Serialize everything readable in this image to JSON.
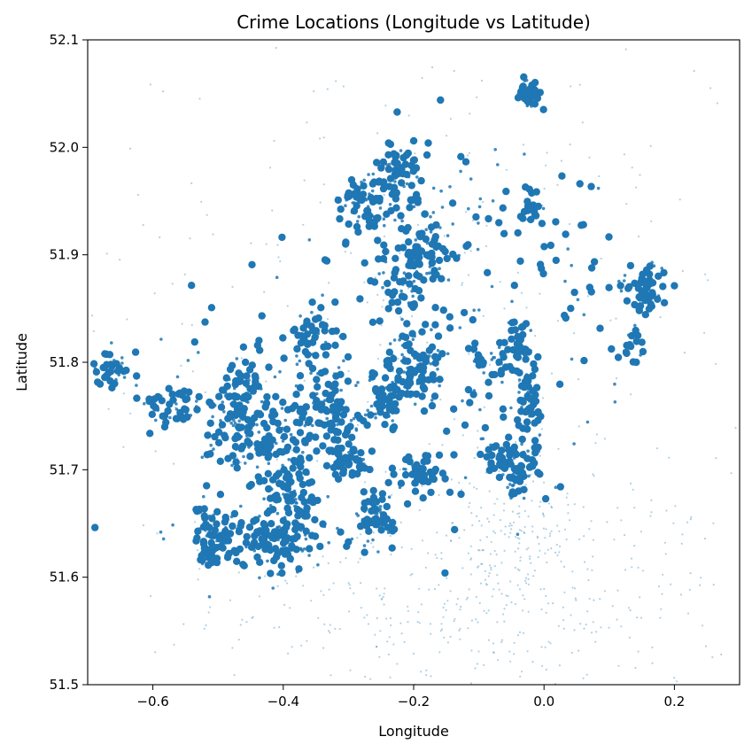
{
  "chart_data": {
    "type": "scatter",
    "title": "Crime Locations (Longitude vs Latitude)",
    "xlabel": "Longitude",
    "ylabel": "Latitude",
    "xlim": [
      -0.7,
      0.3
    ],
    "ylim": [
      51.5,
      52.1
    ],
    "xticks": [
      -0.6,
      -0.4,
      -0.2,
      0.0,
      0.2
    ],
    "xtick_labels": [
      "−0.6",
      "−0.4",
      "−0.2",
      "0.0",
      "0.2"
    ],
    "yticks": [
      51.5,
      51.6,
      51.7,
      51.8,
      51.9,
      52.0,
      52.1
    ],
    "ytick_labels": [
      "51.5",
      "51.6",
      "51.7",
      "51.8",
      "51.9",
      "52.0",
      "52.1"
    ],
    "grid": false,
    "marker_color": "#1f77b4",
    "series": [
      {
        "clusters": [
          {
            "lon": -0.02,
            "lat": 52.052,
            "count": 50,
            "spread_lon": 0.008,
            "spread_lat": 0.006
          },
          {
            "lon": -0.225,
            "lat": 51.975,
            "count": 80,
            "spread_lon": 0.022,
            "spread_lat": 0.014
          },
          {
            "lon": -0.275,
            "lat": 51.95,
            "count": 70,
            "spread_lon": 0.018,
            "spread_lat": 0.015
          },
          {
            "lon": -0.195,
            "lat": 51.905,
            "count": 110,
            "spread_lon": 0.028,
            "spread_lat": 0.028
          },
          {
            "lon": -0.02,
            "lat": 51.945,
            "count": 25,
            "spread_lon": 0.008,
            "spread_lat": 0.008
          },
          {
            "lon": 0.155,
            "lat": 51.868,
            "count": 70,
            "spread_lon": 0.018,
            "spread_lat": 0.012
          },
          {
            "lon": -0.36,
            "lat": 51.825,
            "count": 50,
            "spread_lon": 0.018,
            "spread_lat": 0.012
          },
          {
            "lon": -0.2,
            "lat": 51.795,
            "count": 90,
            "spread_lon": 0.022,
            "spread_lat": 0.016
          },
          {
            "lon": -0.035,
            "lat": 51.812,
            "count": 35,
            "spread_lon": 0.012,
            "spread_lat": 0.01
          },
          {
            "lon": -0.085,
            "lat": 51.8,
            "count": 30,
            "spread_lon": 0.015,
            "spread_lat": 0.008
          },
          {
            "lon": -0.665,
            "lat": 51.795,
            "count": 35,
            "spread_lon": 0.015,
            "spread_lat": 0.008
          },
          {
            "lon": -0.575,
            "lat": 51.76,
            "count": 45,
            "spread_lon": 0.025,
            "spread_lat": 0.01
          },
          {
            "lon": -0.46,
            "lat": 51.755,
            "count": 140,
            "spread_lon": 0.03,
            "spread_lat": 0.025
          },
          {
            "lon": -0.33,
            "lat": 51.755,
            "count": 110,
            "spread_lon": 0.028,
            "spread_lat": 0.022
          },
          {
            "lon": -0.24,
            "lat": 51.765,
            "count": 60,
            "spread_lon": 0.018,
            "spread_lat": 0.012
          },
          {
            "lon": -0.02,
            "lat": 51.76,
            "count": 45,
            "spread_lon": 0.01,
            "spread_lat": 0.02
          },
          {
            "lon": -0.05,
            "lat": 51.71,
            "count": 70,
            "spread_lon": 0.022,
            "spread_lat": 0.012
          },
          {
            "lon": -0.04,
            "lat": 51.69,
            "count": 35,
            "spread_lon": 0.015,
            "spread_lat": 0.008
          },
          {
            "lon": -0.19,
            "lat": 51.695,
            "count": 50,
            "spread_lon": 0.022,
            "spread_lat": 0.008
          },
          {
            "lon": -0.3,
            "lat": 51.71,
            "count": 50,
            "spread_lon": 0.015,
            "spread_lat": 0.014
          },
          {
            "lon": -0.39,
            "lat": 51.68,
            "count": 140,
            "spread_lon": 0.022,
            "spread_lat": 0.03
          },
          {
            "lon": -0.26,
            "lat": 51.655,
            "count": 65,
            "spread_lon": 0.015,
            "spread_lat": 0.012
          },
          {
            "lon": -0.42,
            "lat": 51.635,
            "count": 110,
            "spread_lon": 0.045,
            "spread_lat": 0.012
          },
          {
            "lon": -0.5,
            "lat": 51.645,
            "count": 70,
            "spread_lon": 0.025,
            "spread_lat": 0.01
          },
          {
            "lon": -0.515,
            "lat": 51.62,
            "count": 20,
            "spread_lon": 0.008,
            "spread_lat": 0.008
          },
          {
            "lon": -0.12,
            "lat": 51.84,
            "count": 30,
            "spread_lon": 0.05,
            "spread_lat": 0.04
          },
          {
            "lon": -0.3,
            "lat": 51.87,
            "count": 30,
            "spread_lon": 0.06,
            "spread_lat": 0.04
          },
          {
            "lon": -0.1,
            "lat": 51.95,
            "count": 40,
            "spread_lon": 0.07,
            "spread_lat": 0.05
          },
          {
            "lon": 0.05,
            "lat": 51.88,
            "count": 35,
            "spread_lon": 0.05,
            "spread_lat": 0.06
          },
          {
            "lon": 0.14,
            "lat": 51.81,
            "count": 20,
            "spread_lon": 0.015,
            "spread_lat": 0.01
          },
          {
            "lon": -0.4,
            "lat": 51.72,
            "count": 60,
            "spread_lon": 0.08,
            "spread_lat": 0.05
          },
          {
            "lon": -0.12,
            "lat": 51.73,
            "count": 50,
            "spread_lon": 0.08,
            "spread_lat": 0.05
          },
          {
            "lon": -0.5,
            "lat": 51.8,
            "count": 30,
            "spread_lon": 0.08,
            "spread_lat": 0.04
          },
          {
            "lon": -0.2,
            "lat": 51.86,
            "count": 35,
            "spread_lon": 0.03,
            "spread_lat": 0.03
          }
        ],
        "faint_regions": [
          {
            "lon": -0.1,
            "lat": 51.58,
            "count": 450,
            "spread_lon": 0.2,
            "spread_lat": 0.06
          },
          {
            "lon": -0.2,
            "lat": 51.85,
            "count": 300,
            "spread_lon": 0.32,
            "spread_lat": 0.14
          },
          {
            "lon": -0.05,
            "lat": 51.64,
            "count": 120,
            "spread_lon": 0.05,
            "spread_lat": 0.04
          }
        ]
      }
    ]
  }
}
